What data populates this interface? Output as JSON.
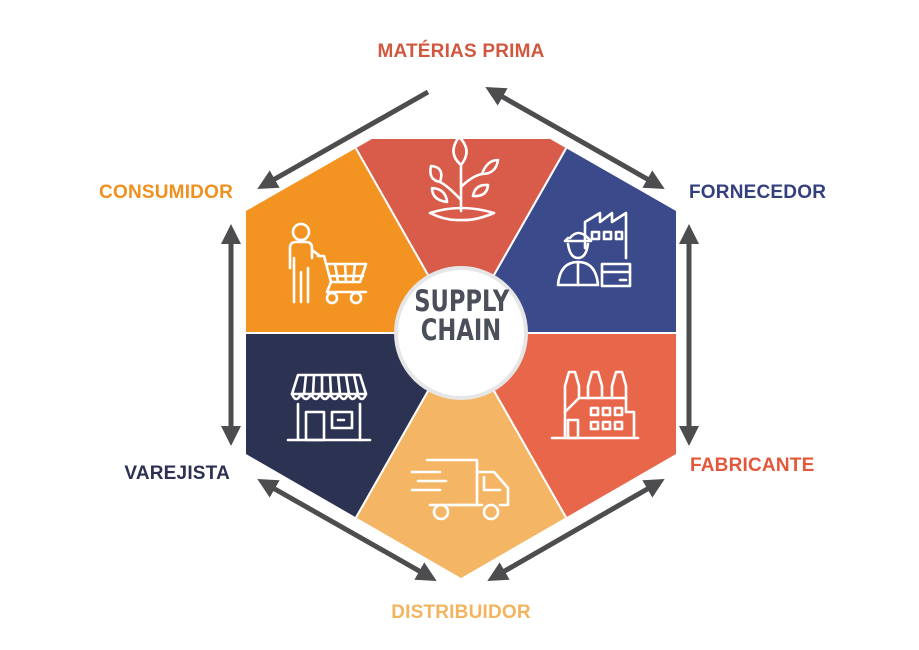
{
  "center": {
    "line1": "SUPPLY",
    "line2": "CHAIN"
  },
  "stages": [
    {
      "id": "raw-materials",
      "label": "MATÉRIAS PRIMA",
      "color": "#d95c4a",
      "label_color": "#d2573f",
      "icon": "plant-icon"
    },
    {
      "id": "supplier",
      "label": "FORNECEDOR",
      "color": "#3b4a8a",
      "label_color": "#34407e",
      "icon": "supplier-worker-factory-icon"
    },
    {
      "id": "manufacturer",
      "label": "FABRICANTE",
      "color": "#e8674b",
      "label_color": "#e3573a",
      "icon": "factory-icon"
    },
    {
      "id": "distributor",
      "label": "DISTRIBUIDOR",
      "color": "#f4b664",
      "label_color": "#f2b45d",
      "icon": "delivery-truck-icon"
    },
    {
      "id": "retailer",
      "label": "VAREJISTA",
      "color": "#2c3352",
      "label_color": "#2b3150",
      "icon": "store-icon"
    },
    {
      "id": "consumer",
      "label": "CONSUMIDOR",
      "color": "#f39321",
      "label_color": "#f0901f",
      "icon": "shopping-cart-person-icon"
    }
  ],
  "arrow_color": "#4d4d4f",
  "icon_color": "#ffffff"
}
